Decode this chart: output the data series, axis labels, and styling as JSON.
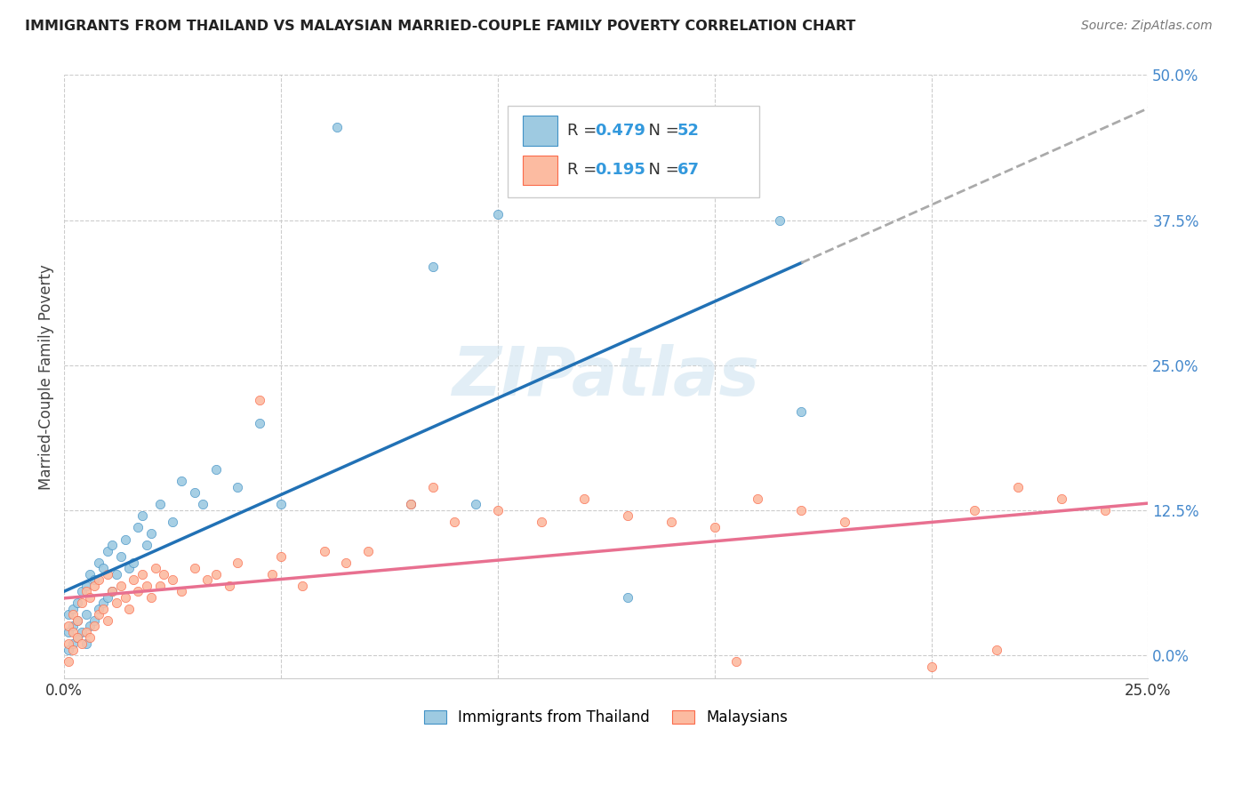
{
  "title": "IMMIGRANTS FROM THAILAND VS MALAYSIAN MARRIED-COUPLE FAMILY POVERTY CORRELATION CHART",
  "source": "Source: ZipAtlas.com",
  "ylabel": "Married-Couple Family Poverty",
  "xlim": [
    0.0,
    0.25
  ],
  "ylim": [
    -0.02,
    0.5
  ],
  "ytick_labels_right": [
    "0.0%",
    "12.5%",
    "25.0%",
    "37.5%",
    "50.0%"
  ],
  "ytick_positions_right": [
    0.0,
    0.125,
    0.25,
    0.375,
    0.5
  ],
  "legend_label1": "Immigrants from Thailand",
  "legend_label2": "Malaysians",
  "color_blue": "#9ecae1",
  "color_blue_edge": "#4292c6",
  "color_pink": "#fcbba1",
  "color_pink_edge": "#fb6a4a",
  "color_line_blue": "#2171b5",
  "color_line_pink": "#e87090",
  "background_color": "#ffffff",
  "th_x": [
    0.001,
    0.001,
    0.001,
    0.002,
    0.002,
    0.002,
    0.003,
    0.003,
    0.003,
    0.004,
    0.004,
    0.005,
    0.005,
    0.005,
    0.006,
    0.006,
    0.007,
    0.007,
    0.008,
    0.008,
    0.009,
    0.009,
    0.01,
    0.01,
    0.011,
    0.011,
    0.012,
    0.013,
    0.014,
    0.015,
    0.016,
    0.017,
    0.018,
    0.019,
    0.02,
    0.022,
    0.025,
    0.027,
    0.03,
    0.032,
    0.035,
    0.04,
    0.045,
    0.05,
    0.063,
    0.08,
    0.085,
    0.095,
    0.1,
    0.13,
    0.165,
    0.17
  ],
  "th_y": [
    0.005,
    0.02,
    0.035,
    0.01,
    0.025,
    0.04,
    0.015,
    0.03,
    0.045,
    0.02,
    0.055,
    0.01,
    0.035,
    0.06,
    0.025,
    0.07,
    0.03,
    0.065,
    0.04,
    0.08,
    0.045,
    0.075,
    0.05,
    0.09,
    0.055,
    0.095,
    0.07,
    0.085,
    0.1,
    0.075,
    0.08,
    0.11,
    0.12,
    0.095,
    0.105,
    0.13,
    0.115,
    0.15,
    0.14,
    0.13,
    0.16,
    0.145,
    0.2,
    0.13,
    0.455,
    0.13,
    0.335,
    0.13,
    0.38,
    0.05,
    0.375,
    0.21
  ],
  "my_x": [
    0.001,
    0.001,
    0.001,
    0.002,
    0.002,
    0.002,
    0.003,
    0.003,
    0.004,
    0.004,
    0.005,
    0.005,
    0.006,
    0.006,
    0.007,
    0.007,
    0.008,
    0.008,
    0.009,
    0.01,
    0.01,
    0.011,
    0.012,
    0.013,
    0.014,
    0.015,
    0.016,
    0.017,
    0.018,
    0.019,
    0.02,
    0.021,
    0.022,
    0.023,
    0.025,
    0.027,
    0.03,
    0.033,
    0.035,
    0.038,
    0.04,
    0.045,
    0.048,
    0.05,
    0.055,
    0.06,
    0.065,
    0.07,
    0.08,
    0.085,
    0.09,
    0.1,
    0.11,
    0.12,
    0.13,
    0.14,
    0.15,
    0.155,
    0.16,
    0.17,
    0.18,
    0.2,
    0.21,
    0.215,
    0.22,
    0.23,
    0.24
  ],
  "my_y": [
    0.01,
    0.025,
    -0.005,
    0.005,
    0.02,
    0.035,
    0.015,
    0.03,
    0.01,
    0.045,
    0.02,
    0.055,
    0.015,
    0.05,
    0.025,
    0.06,
    0.035,
    0.065,
    0.04,
    0.03,
    0.07,
    0.055,
    0.045,
    0.06,
    0.05,
    0.04,
    0.065,
    0.055,
    0.07,
    0.06,
    0.05,
    0.075,
    0.06,
    0.07,
    0.065,
    0.055,
    0.075,
    0.065,
    0.07,
    0.06,
    0.08,
    0.22,
    0.07,
    0.085,
    0.06,
    0.09,
    0.08,
    0.09,
    0.13,
    0.145,
    0.115,
    0.125,
    0.115,
    0.135,
    0.12,
    0.115,
    0.11,
    -0.005,
    0.135,
    0.125,
    0.115,
    -0.01,
    0.125,
    0.005,
    0.145,
    0.135,
    0.125
  ]
}
